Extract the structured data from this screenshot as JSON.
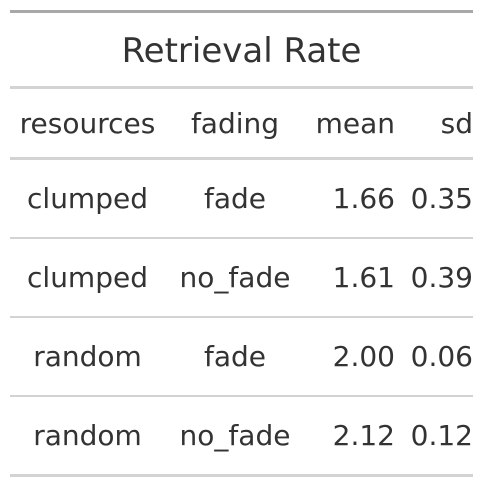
{
  "table": {
    "title": "Retrieval Rate",
    "columns": [
      "resources",
      "fading",
      "mean",
      "sd"
    ],
    "rows": [
      [
        "clumped",
        "fade",
        "1.66",
        "0.35"
      ],
      [
        "clumped",
        "no_fade",
        "1.61",
        "0.39"
      ],
      [
        "random",
        "fade",
        "2.00",
        "0.06"
      ],
      [
        "random",
        "no_fade",
        "2.12",
        "0.12"
      ]
    ]
  }
}
